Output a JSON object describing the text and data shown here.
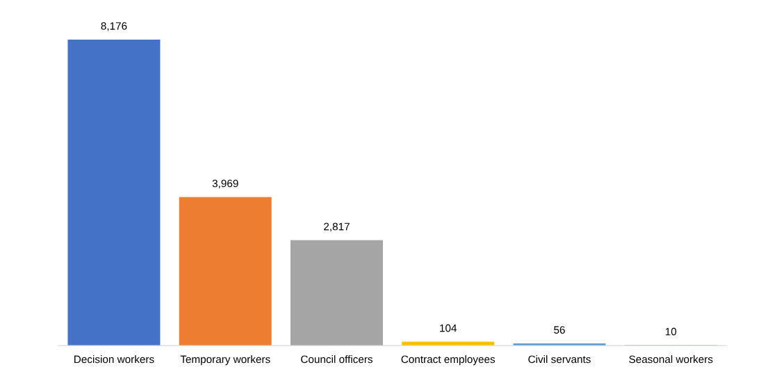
{
  "chart_data": {
    "type": "bar",
    "categories": [
      "Decision workers",
      "Temporary workers",
      "Council officers",
      "Contract employees",
      "Civil servants",
      "Seasonal workers"
    ],
    "values": [
      8176,
      3969,
      2817,
      104,
      56,
      10
    ],
    "colors": [
      "#4472c4",
      "#ed7d31",
      "#a5a5a5",
      "#ffc000",
      "#5b9bd5",
      "#70ad47"
    ],
    "value_labels": [
      "8,176",
      "3,969",
      "2,817",
      "104",
      "56",
      "10"
    ],
    "grid": false,
    "legend": false
  }
}
